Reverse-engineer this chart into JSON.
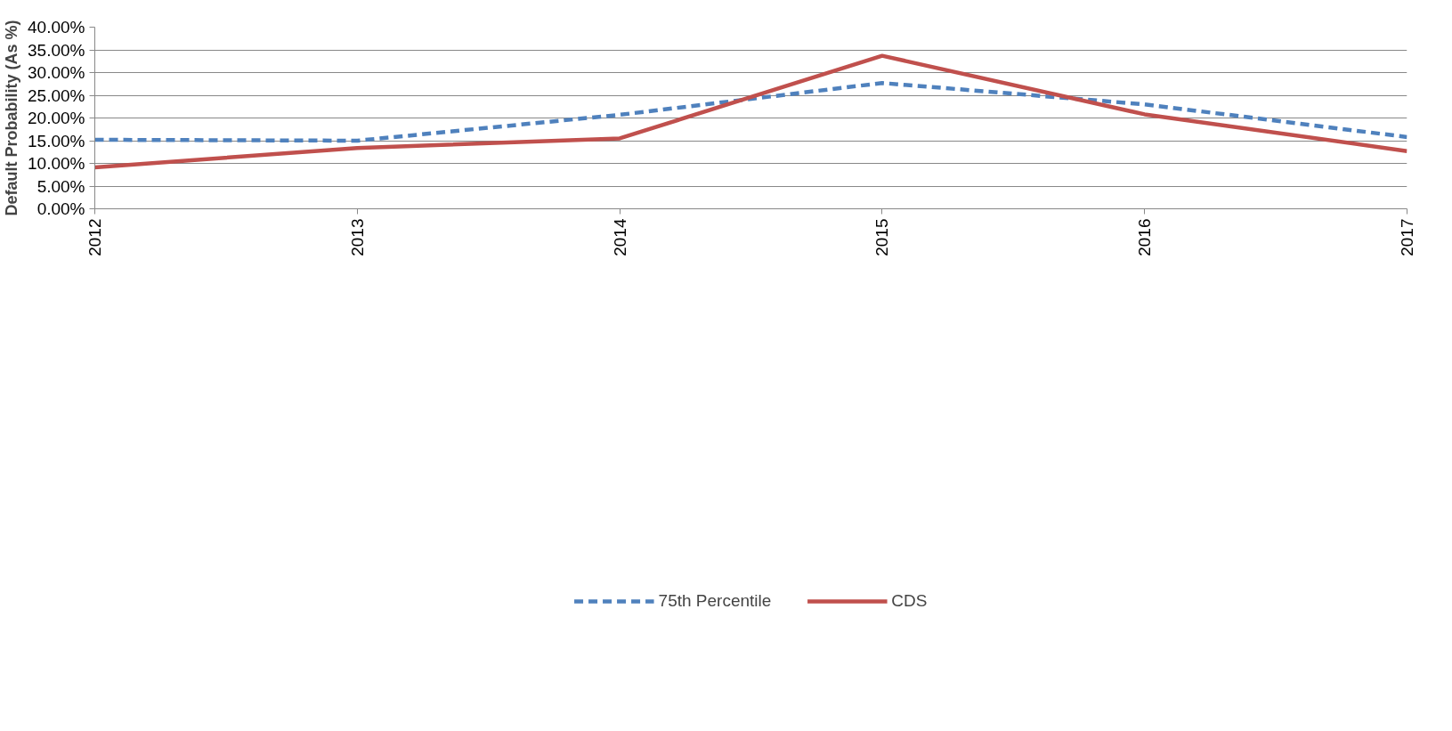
{
  "chart_data": {
    "type": "line",
    "ylabel": "Default Probability (As %)",
    "categories": [
      "2012",
      "2013",
      "2014",
      "2015",
      "2016",
      "2017"
    ],
    "series": [
      {
        "name": "75th Percentile",
        "color": "#4f81bd",
        "line_style": "dashed",
        "values": [
          15.2,
          15.0,
          20.7,
          27.7,
          23.0,
          15.8
        ]
      },
      {
        "name": "CDS",
        "color": "#c0504d",
        "line_style": "solid",
        "values": [
          9.1,
          13.4,
          15.5,
          33.7,
          20.8,
          12.7
        ]
      }
    ],
    "ylim": [
      0,
      40
    ],
    "yticks": [
      {
        "value": 0,
        "label": "0.00%"
      },
      {
        "value": 5,
        "label": "5.00%"
      },
      {
        "value": 10,
        "label": "10.00%"
      },
      {
        "value": 15,
        "label": "15.00%"
      },
      {
        "value": 20,
        "label": "20.00%"
      },
      {
        "value": 25,
        "label": "25.00%"
      },
      {
        "value": 30,
        "label": "30.00%"
      },
      {
        "value": 35,
        "label": "35.00%"
      },
      {
        "value": 40,
        "label": "40.00%"
      }
    ],
    "grid": "y",
    "legend": "bottom",
    "marker": "none"
  }
}
